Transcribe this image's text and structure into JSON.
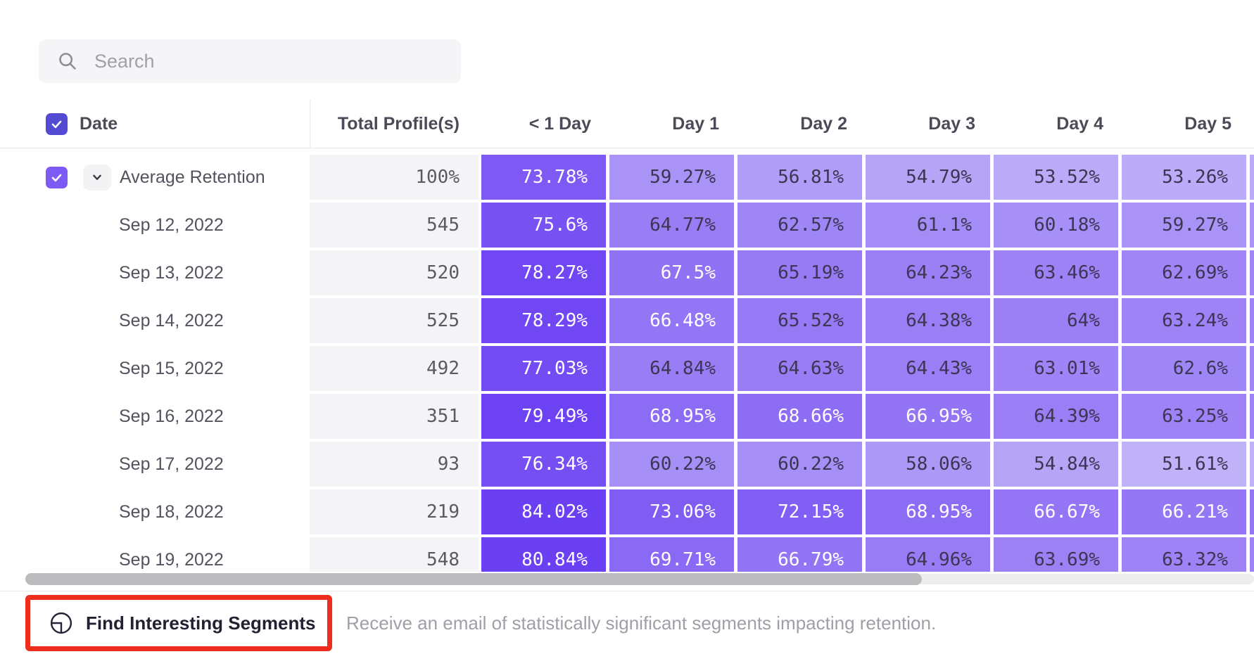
{
  "search": {
    "placeholder": "Search"
  },
  "table": {
    "date_column_header": "Date",
    "columns": [
      "Total Profile(s)",
      "< 1 Day",
      "Day 1",
      "Day 2",
      "Day 3",
      "Day 4",
      "Day 5"
    ],
    "rows": [
      {
        "label": "Average Retention",
        "total": "100%",
        "expandable": true,
        "values": [
          "73.78%",
          "59.27%",
          "56.81%",
          "54.79%",
          "53.52%",
          "53.26%"
        ]
      },
      {
        "label": "Sep 12, 2022",
        "total": "545",
        "values": [
          "75.6%",
          "64.77%",
          "62.57%",
          "61.1%",
          "60.18%",
          "59.27%"
        ]
      },
      {
        "label": "Sep 13, 2022",
        "total": "520",
        "values": [
          "78.27%",
          "67.5%",
          "65.19%",
          "64.23%",
          "63.46%",
          "62.69%"
        ]
      },
      {
        "label": "Sep 14, 2022",
        "total": "525",
        "values": [
          "78.29%",
          "66.48%",
          "65.52%",
          "64.38%",
          "64%",
          "63.24%"
        ]
      },
      {
        "label": "Sep 15, 2022",
        "total": "492",
        "values": [
          "77.03%",
          "64.84%",
          "64.63%",
          "64.43%",
          "63.01%",
          "62.6%"
        ]
      },
      {
        "label": "Sep 16, 2022",
        "total": "351",
        "values": [
          "79.49%",
          "68.95%",
          "68.66%",
          "66.95%",
          "64.39%",
          "63.25%"
        ]
      },
      {
        "label": "Sep 17, 2022",
        "total": "93",
        "values": [
          "76.34%",
          "60.22%",
          "60.22%",
          "58.06%",
          "54.84%",
          "51.61%"
        ]
      },
      {
        "label": "Sep 18, 2022",
        "total": "219",
        "values": [
          "84.02%",
          "73.06%",
          "72.15%",
          "68.95%",
          "66.67%",
          "66.21%"
        ]
      },
      {
        "label": "Sep 19, 2022",
        "total": "548",
        "values": [
          "80.84%",
          "69.71%",
          "66.79%",
          "64.96%",
          "63.69%",
          "63.32%"
        ]
      }
    ]
  },
  "footer": {
    "button_label": "Find Interesting Segments",
    "description": "Receive an email of statistically significant segments impacting retention."
  },
  "colors": {
    "cell_light": "#c0b2f8",
    "cell_dark": "#6b40f2",
    "cell_text_dark": "#3c3553",
    "cell_text_light": "#ffffff",
    "header_checkbox": "#544bd4",
    "row_checkbox": "#7d59f6",
    "annotation_red": "#ee2e1d"
  }
}
